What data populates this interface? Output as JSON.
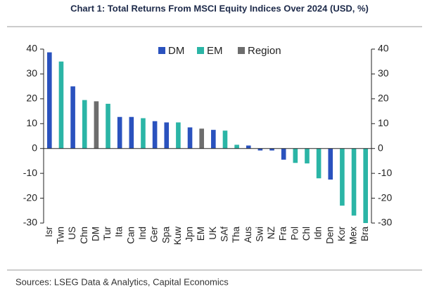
{
  "chart_data": {
    "type": "bar",
    "title": "Chart 1: Total Returns From MSCI Equity Indices Over 2024 (USD, %)",
    "source": "Sources: LSEG Data & Analytics, Capital Economics",
    "categories": [
      "Isr",
      "Twn",
      "US",
      "Chn",
      "DM",
      "Tur",
      "Ita",
      "Can",
      "Ind",
      "Ger",
      "Spa",
      "Kuw",
      "Jpn",
      "EM",
      "UK",
      "SAf",
      "Tha",
      "Aus",
      "Swi",
      "NZ",
      "Fra",
      "Pol",
      "Chl",
      "Idn",
      "Den",
      "Kor",
      "Mex",
      "Bra"
    ],
    "series": [
      {
        "name": "DM",
        "color": "#2a52be",
        "values": [
          38.7,
          null,
          25,
          null,
          null,
          null,
          12.7,
          12.7,
          null,
          11,
          10.5,
          null,
          8.5,
          null,
          7.5,
          null,
          null,
          1.2,
          -0.8,
          -0.8,
          -4.5,
          null,
          null,
          null,
          -12.5,
          null,
          null,
          null
        ]
      },
      {
        "name": "EM",
        "color": "#2bb5a6",
        "values": [
          null,
          35,
          null,
          19.5,
          null,
          18,
          null,
          null,
          12.2,
          null,
          null,
          10.5,
          null,
          null,
          null,
          7.2,
          1.5,
          null,
          null,
          null,
          null,
          -5.8,
          -6,
          -12,
          null,
          -23,
          -27,
          -30
        ]
      },
      {
        "name": "Region",
        "color": "#6d6d6d",
        "values": [
          null,
          null,
          null,
          null,
          19,
          null,
          null,
          null,
          null,
          null,
          null,
          null,
          null,
          8,
          null,
          null,
          null,
          null,
          null,
          null,
          null,
          null,
          null,
          null,
          null,
          null,
          null,
          null
        ]
      }
    ],
    "ylim": [
      -30,
      40
    ],
    "yticks": [
      -30,
      -20,
      -10,
      0,
      10,
      20,
      30,
      40
    ],
    "y2lim": [
      -30,
      40
    ],
    "y2ticks": [
      -30,
      -20,
      -10,
      0,
      10,
      20,
      30,
      40
    ],
    "legend": "top"
  }
}
